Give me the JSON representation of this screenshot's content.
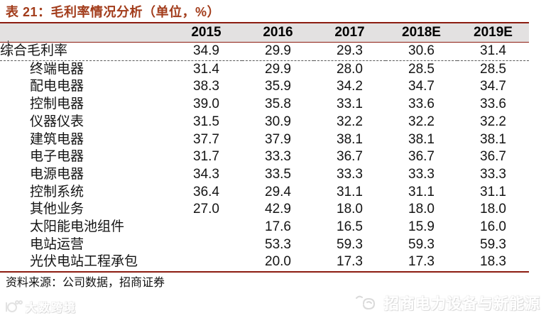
{
  "title": "表 21：毛利率情况分析（单位，%）",
  "table": {
    "columns": [
      "2015",
      "2016",
      "2017",
      "2018E",
      "2019E"
    ],
    "rows": [
      {
        "label": "综合毛利率",
        "indent": false,
        "values": [
          "34.9",
          "29.9",
          "29.3",
          "30.6",
          "31.4"
        ]
      },
      {
        "label": "终端电器",
        "indent": true,
        "values": [
          "31.4",
          "29.9",
          "28.0",
          "28.5",
          "28.5"
        ]
      },
      {
        "label": "配电电器",
        "indent": true,
        "values": [
          "38.3",
          "35.9",
          "34.2",
          "34.7",
          "34.7"
        ]
      },
      {
        "label": "控制电器",
        "indent": true,
        "values": [
          "39.0",
          "35.8",
          "33.1",
          "33.6",
          "33.6"
        ]
      },
      {
        "label": "仪器仪表",
        "indent": true,
        "values": [
          "31.5",
          "30.9",
          "32.2",
          "32.2",
          "32.2"
        ]
      },
      {
        "label": "建筑电器",
        "indent": true,
        "values": [
          "37.7",
          "37.9",
          "38.1",
          "38.1",
          "38.1"
        ]
      },
      {
        "label": "电子电器",
        "indent": true,
        "values": [
          "31.7",
          "33.3",
          "36.7",
          "36.7",
          "36.7"
        ]
      },
      {
        "label": "电源电器",
        "indent": true,
        "values": [
          "34.3",
          "33.5",
          "33.3",
          "33.3",
          "33.3"
        ]
      },
      {
        "label": "控制系统",
        "indent": true,
        "values": [
          "36.4",
          "29.4",
          "31.1",
          "31.1",
          "31.1"
        ]
      },
      {
        "label": "其他业务",
        "indent": true,
        "values": [
          "27.0",
          "42.9",
          "18.0",
          "18.0",
          "18.0"
        ]
      },
      {
        "label": "太阳能电池组件",
        "indent": true,
        "values": [
          "",
          "17.6",
          "16.5",
          "15.9",
          "16.0"
        ]
      },
      {
        "label": "电站运营",
        "indent": true,
        "values": [
          "",
          "53.3",
          "59.3",
          "59.3",
          "59.3"
        ]
      },
      {
        "label": "光伏电站工程承包",
        "indent": true,
        "values": [
          "",
          "20.0",
          "17.3",
          "17.3",
          "18.3"
        ]
      }
    ]
  },
  "source_note": "资料来源：公司数据，招商证券",
  "watermarks": {
    "bottom_left": "大数跨境",
    "bottom_right": "招商电力设备与新能源"
  },
  "colors": {
    "accent_line_red": "#8c1c11",
    "title_color": "#a23c1b",
    "header_bg": "#e3e1e1",
    "text_color": "#141414"
  }
}
